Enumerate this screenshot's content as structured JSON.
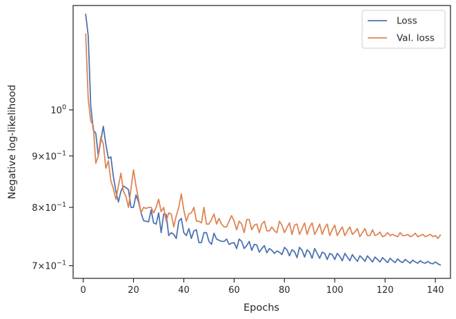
{
  "chart_data": {
    "type": "line",
    "xlabel": "Epochs",
    "ylabel": "Negative log-likelihood",
    "xlim": [
      -4,
      146
    ],
    "ylim": [
      0.68,
      1.27
    ],
    "yscale": "log",
    "xticks": [
      0,
      20,
      40,
      60,
      80,
      100,
      120,
      140
    ],
    "xtick_labels": [
      "0",
      "20",
      "40",
      "60",
      "80",
      "100",
      "120",
      "140"
    ],
    "yticks": [
      {
        "value": 0.7,
        "base": "7",
        "exp": "−1"
      },
      {
        "value": 0.8,
        "base": "8",
        "exp": "−1"
      },
      {
        "value": 0.9,
        "base": "9",
        "exp": "−1"
      },
      {
        "value": 1.0,
        "base": "10",
        "exp": "0"
      }
    ],
    "ytick_times": "×",
    "legend_position": "top-right",
    "grid": false,
    "series": [
      {
        "name": "Loss",
        "color": "#4c72b0",
        "x": [
          1,
          2,
          3,
          4,
          5,
          6,
          7,
          8,
          9,
          10,
          11,
          12,
          13,
          14,
          15,
          16,
          17,
          18,
          19,
          20,
          21,
          22,
          23,
          24,
          25,
          26,
          27,
          28,
          29,
          30,
          31,
          32,
          33,
          34,
          35,
          36,
          37,
          38,
          39,
          40,
          41,
          42,
          43,
          44,
          45,
          46,
          47,
          48,
          49,
          50,
          51,
          52,
          53,
          54,
          55,
          56,
          57,
          58,
          59,
          60,
          61,
          62,
          63,
          64,
          65,
          66,
          67,
          68,
          69,
          70,
          71,
          72,
          73,
          74,
          75,
          76,
          77,
          78,
          79,
          80,
          81,
          82,
          83,
          84,
          85,
          86,
          87,
          88,
          89,
          90,
          91,
          92,
          93,
          94,
          95,
          96,
          97,
          98,
          99,
          100,
          101,
          102,
          103,
          104,
          105,
          106,
          107,
          108,
          109,
          110,
          111,
          112,
          113,
          114,
          115,
          116,
          117,
          118,
          119,
          120,
          121,
          122,
          123,
          124,
          125,
          126,
          127,
          128,
          129,
          130,
          131,
          132,
          133,
          134,
          135,
          136,
          137,
          138,
          139,
          140,
          141,
          142
        ],
        "values": [
          1.245,
          1.185,
          1.01,
          0.955,
          0.948,
          0.9,
          0.932,
          0.963,
          0.925,
          0.895,
          0.898,
          0.858,
          0.83,
          0.81,
          0.83,
          0.84,
          0.837,
          0.833,
          0.8,
          0.8,
          0.823,
          0.81,
          0.79,
          0.776,
          0.775,
          0.774,
          0.795,
          0.772,
          0.77,
          0.79,
          0.755,
          0.788,
          0.787,
          0.75,
          0.755,
          0.752,
          0.745,
          0.775,
          0.78,
          0.755,
          0.75,
          0.762,
          0.745,
          0.758,
          0.76,
          0.738,
          0.738,
          0.755,
          0.755,
          0.74,
          0.735,
          0.754,
          0.744,
          0.742,
          0.74,
          0.74,
          0.744,
          0.735,
          0.737,
          0.738,
          0.728,
          0.744,
          0.74,
          0.728,
          0.733,
          0.74,
          0.725,
          0.735,
          0.734,
          0.722,
          0.728,
          0.733,
          0.721,
          0.728,
          0.725,
          0.72,
          0.724,
          0.722,
          0.718,
          0.73,
          0.726,
          0.716,
          0.726,
          0.723,
          0.713,
          0.73,
          0.725,
          0.714,
          0.726,
          0.722,
          0.712,
          0.728,
          0.72,
          0.712,
          0.722,
          0.72,
          0.71,
          0.72,
          0.718,
          0.71,
          0.72,
          0.715,
          0.708,
          0.72,
          0.714,
          0.708,
          0.718,
          0.712,
          0.707,
          0.716,
          0.712,
          0.707,
          0.716,
          0.711,
          0.706,
          0.714,
          0.71,
          0.706,
          0.713,
          0.709,
          0.705,
          0.712,
          0.708,
          0.705,
          0.711,
          0.707,
          0.705,
          0.71,
          0.707,
          0.704,
          0.709,
          0.706,
          0.704,
          0.708,
          0.705,
          0.704,
          0.707,
          0.704,
          0.703,
          0.706,
          0.703,
          0.701
        ]
      },
      {
        "name": "Val. loss",
        "color": "#dd8452",
        "x": [
          1,
          2,
          3,
          4,
          5,
          6,
          7,
          8,
          9,
          10,
          11,
          12,
          13,
          14,
          15,
          16,
          17,
          18,
          19,
          20,
          21,
          22,
          23,
          24,
          25,
          26,
          27,
          28,
          29,
          30,
          31,
          32,
          33,
          34,
          35,
          36,
          37,
          38,
          39,
          40,
          41,
          42,
          43,
          44,
          45,
          46,
          47,
          48,
          49,
          50,
          51,
          52,
          53,
          54,
          55,
          56,
          57,
          58,
          59,
          60,
          61,
          62,
          63,
          64,
          65,
          66,
          67,
          68,
          69,
          70,
          71,
          72,
          73,
          74,
          75,
          76,
          77,
          78,
          79,
          80,
          81,
          82,
          83,
          84,
          85,
          86,
          87,
          88,
          89,
          90,
          91,
          92,
          93,
          94,
          95,
          96,
          97,
          98,
          99,
          100,
          101,
          102,
          103,
          104,
          105,
          106,
          107,
          108,
          109,
          110,
          111,
          112,
          113,
          114,
          115,
          116,
          117,
          118,
          119,
          120,
          121,
          122,
          123,
          124,
          125,
          126,
          127,
          128,
          129,
          130,
          131,
          132,
          133,
          134,
          135,
          136,
          137,
          138,
          139,
          140,
          141,
          142
        ],
        "values": [
          1.19,
          1.025,
          0.975,
          0.965,
          0.885,
          0.9,
          0.94,
          0.925,
          0.875,
          0.89,
          0.85,
          0.835,
          0.815,
          0.84,
          0.865,
          0.83,
          0.82,
          0.8,
          0.835,
          0.872,
          0.84,
          0.815,
          0.79,
          0.8,
          0.798,
          0.8,
          0.8,
          0.79,
          0.8,
          0.815,
          0.792,
          0.8,
          0.775,
          0.79,
          0.788,
          0.765,
          0.785,
          0.8,
          0.825,
          0.795,
          0.775,
          0.788,
          0.79,
          0.8,
          0.775,
          0.775,
          0.772,
          0.8,
          0.77,
          0.77,
          0.778,
          0.788,
          0.77,
          0.78,
          0.77,
          0.765,
          0.765,
          0.775,
          0.785,
          0.775,
          0.76,
          0.775,
          0.77,
          0.755,
          0.778,
          0.778,
          0.76,
          0.768,
          0.77,
          0.755,
          0.77,
          0.775,
          0.758,
          0.758,
          0.765,
          0.758,
          0.755,
          0.775,
          0.768,
          0.755,
          0.764,
          0.772,
          0.752,
          0.768,
          0.77,
          0.752,
          0.762,
          0.772,
          0.752,
          0.765,
          0.772,
          0.752,
          0.76,
          0.77,
          0.752,
          0.763,
          0.77,
          0.75,
          0.76,
          0.768,
          0.75,
          0.758,
          0.765,
          0.75,
          0.758,
          0.765,
          0.752,
          0.756,
          0.762,
          0.748,
          0.755,
          0.762,
          0.75,
          0.75,
          0.76,
          0.75,
          0.752,
          0.756,
          0.748,
          0.75,
          0.755,
          0.75,
          0.752,
          0.75,
          0.748,
          0.755,
          0.75,
          0.75,
          0.752,
          0.748,
          0.75,
          0.754,
          0.748,
          0.75,
          0.752,
          0.748,
          0.75,
          0.752,
          0.748,
          0.75,
          0.745,
          0.751
        ]
      }
    ]
  }
}
